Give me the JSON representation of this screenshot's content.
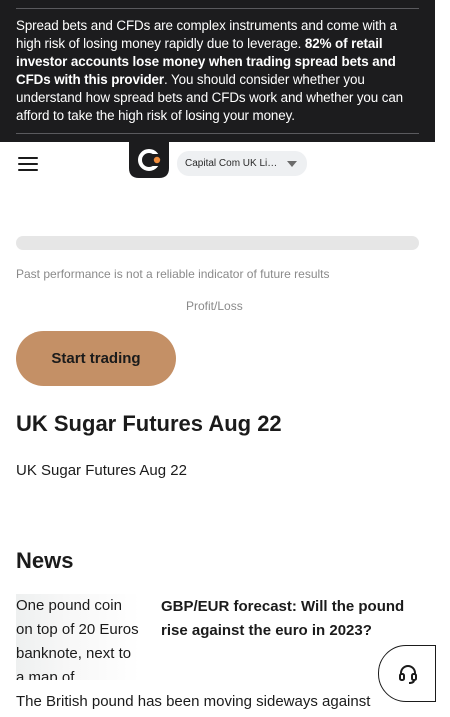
{
  "risk_warning": {
    "part1": "Spread bets and CFDs are complex instruments and come with a high risk of losing money rapidly due to leverage. ",
    "bold": "82% of retail investor accounts lose money when trading spread bets and CFDs with this provider",
    "part2": ". You should consider whether you understand how spread bets and CFDs work and whether you can afford to take the high risk of losing your money."
  },
  "header": {
    "logo_letter": "c",
    "entity_selector": {
      "selected": "Capital Com UK Limited"
    }
  },
  "chart": {
    "disclaimer": "Past performance is not a reliable indicator of future results",
    "profit_loss_label": "Profit/Loss"
  },
  "cta": {
    "start_trading": "Start trading"
  },
  "instrument": {
    "title": "UK Sugar Futures Aug 22",
    "subtitle": "UK Sugar Futures Aug 22"
  },
  "news": {
    "heading": "News",
    "items": [
      {
        "image_alt": "One pound coin on top of 20 Euros banknote, next to a map of",
        "title": "GBP/EUR forecast: Will the pound rise against the euro in 2023?",
        "excerpt": "The British pound has been moving sideways against"
      }
    ]
  },
  "colors": {
    "banner_bg": "#1c1c1e",
    "cta_bg": "#c49066",
    "accent_orange": "#ef8c3c"
  },
  "icons": {
    "menu": "hamburger-icon",
    "caret": "chevron-down-icon",
    "support": "headset-icon"
  }
}
